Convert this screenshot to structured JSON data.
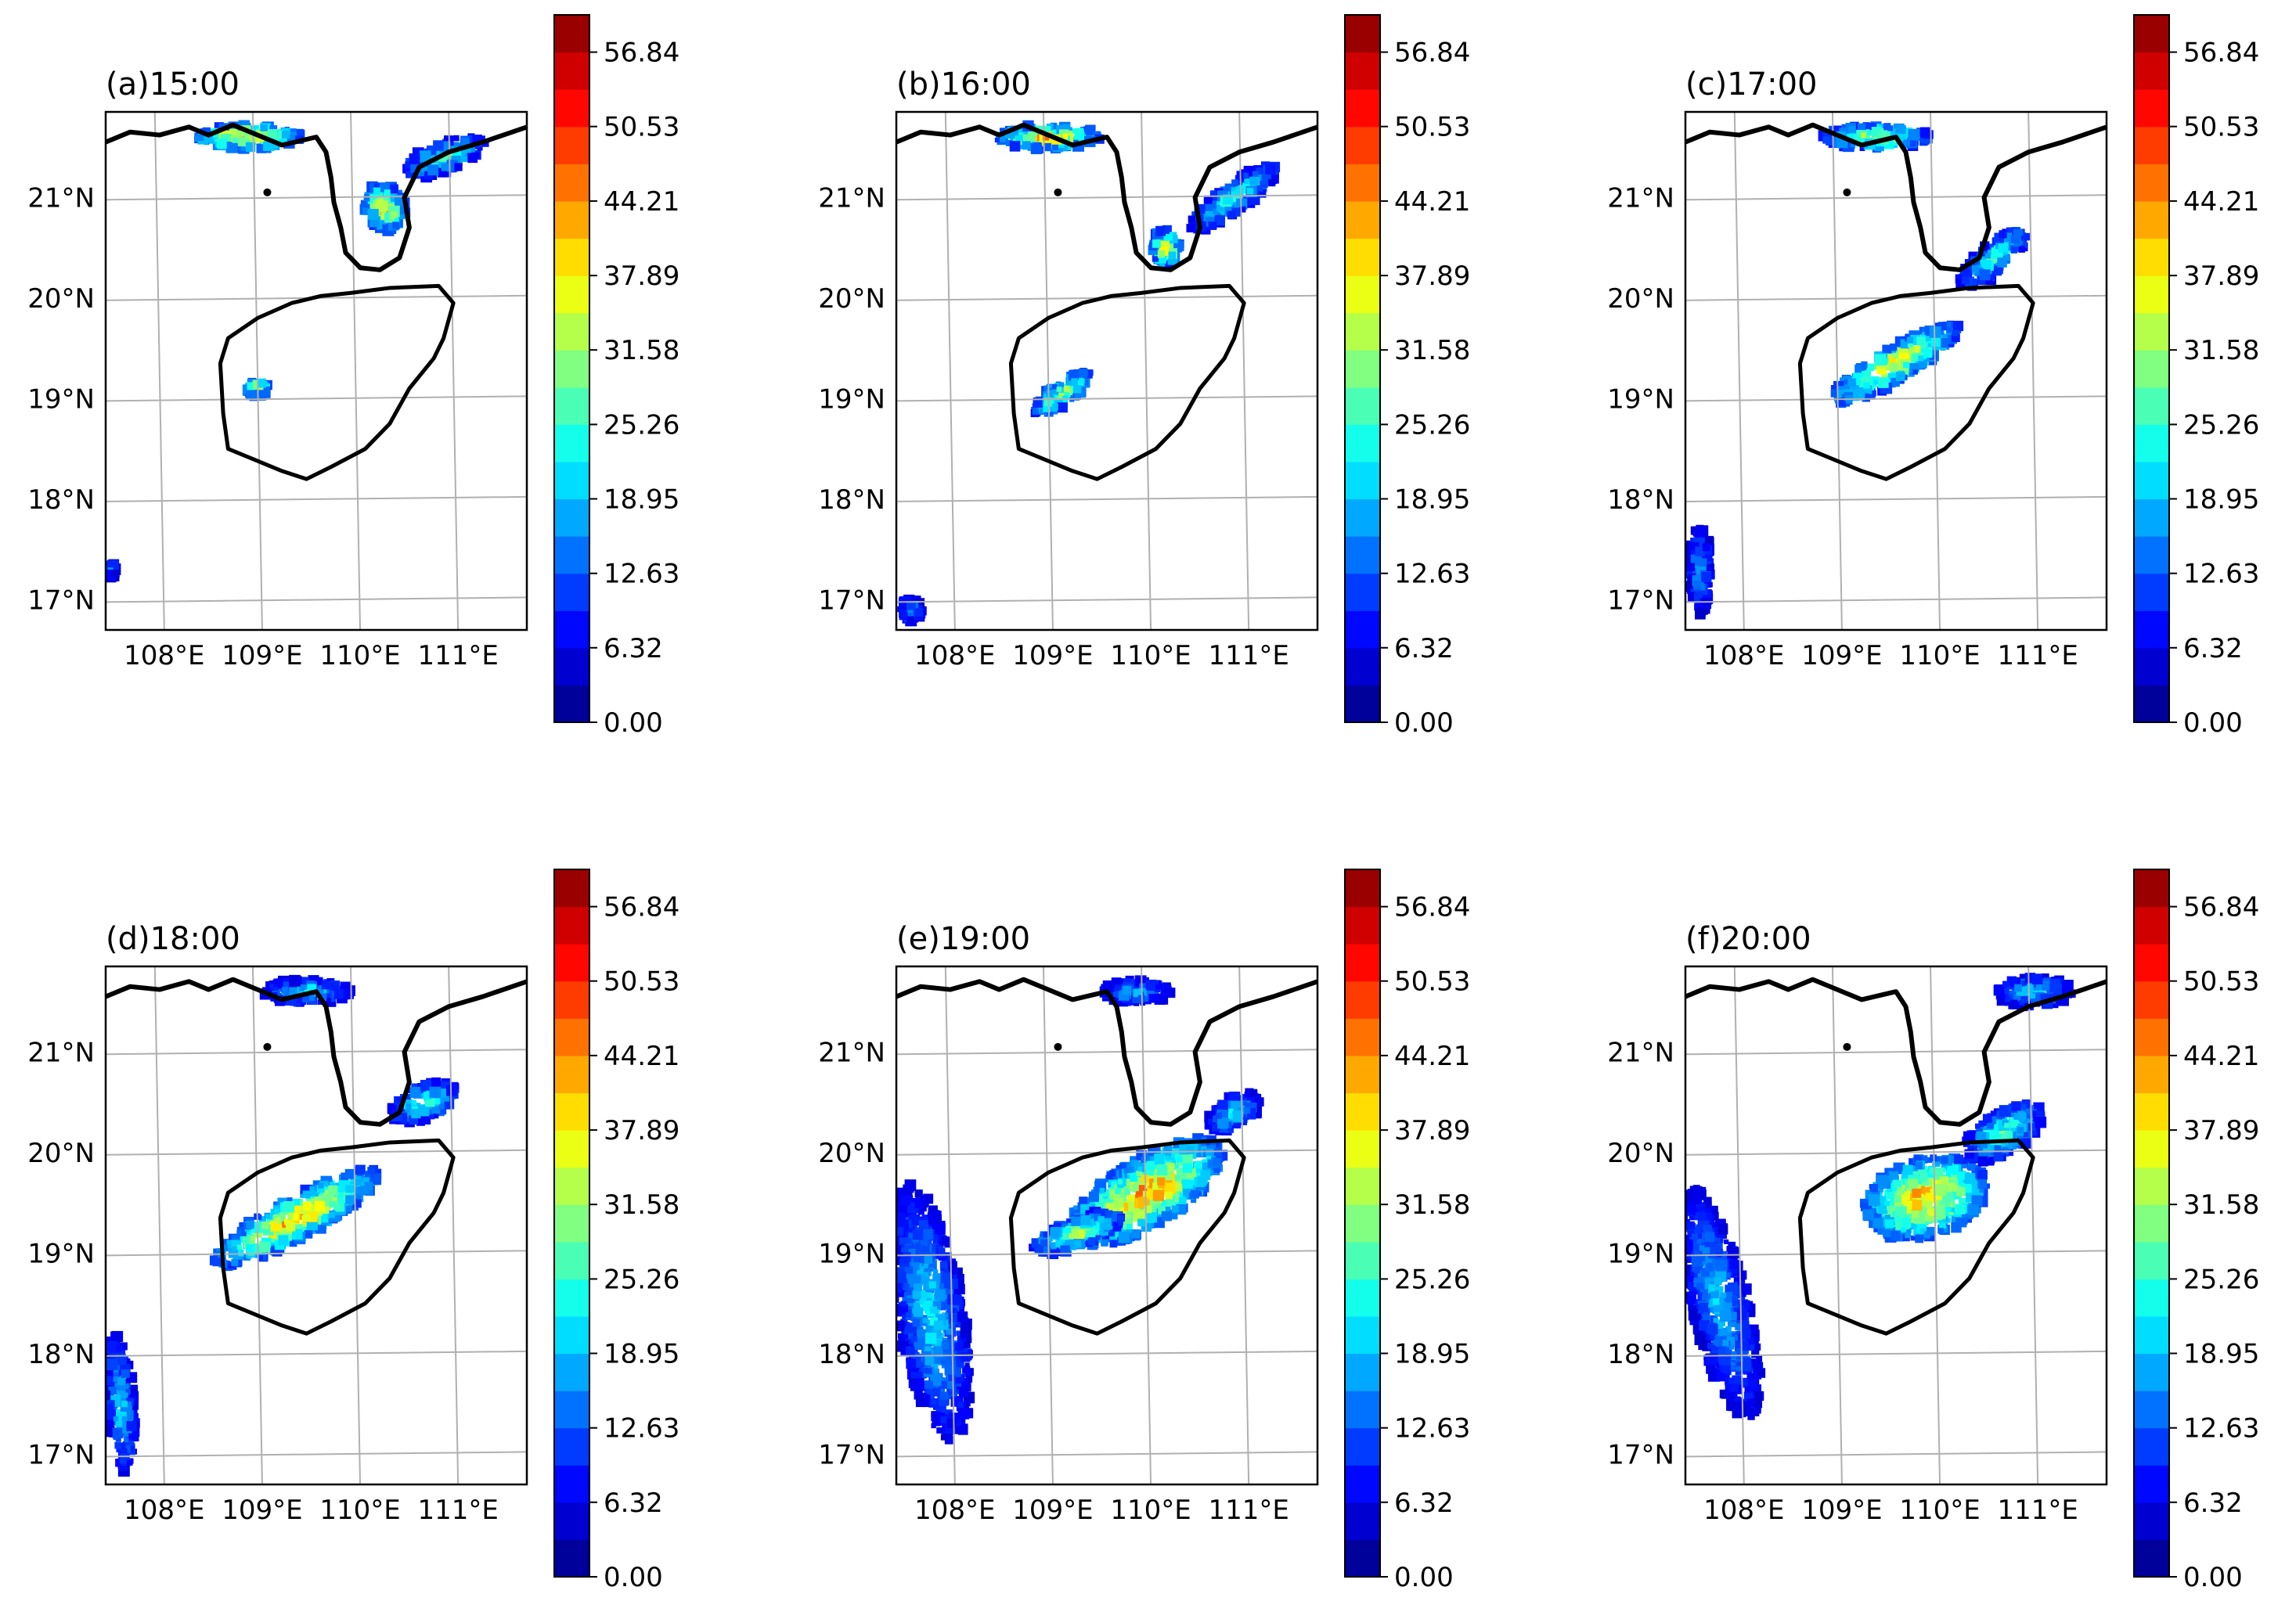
{
  "figure": {
    "panels": [
      {
        "title": "(a)15:00"
      },
      {
        "title": "(b)16:00"
      },
      {
        "title": "(c)17:00"
      },
      {
        "title": "(d)18:00"
      },
      {
        "title": "(e)19:00"
      },
      {
        "title": "(f)20:00"
      }
    ],
    "lat_labels": [
      "21°N",
      "20°N",
      "19°N",
      "18°N",
      "17°N"
    ],
    "lon_labels": [
      "108°E",
      "109°E",
      "110°E",
      "111°E"
    ],
    "colorbar_ticks": [
      "0.00",
      "6.32",
      "12.63",
      "18.95",
      "25.26",
      "31.58",
      "37.89",
      "44.21",
      "50.53",
      "56.84"
    ]
  },
  "chart_data": {
    "type": "heatmap",
    "panels": [
      "(a)15:00",
      "(b)16:00",
      "(c)17:00",
      "(d)18:00",
      "(e)19:00",
      "(f)20:00"
    ],
    "xlabel": "",
    "ylabel": "",
    "xlim": [
      107.45,
      111.75
    ],
    "ylim": [
      16.7,
      21.85
    ],
    "x_ticks": [
      108,
      109,
      110,
      111
    ],
    "y_ticks": [
      17,
      18,
      19,
      20,
      21
    ],
    "grid": true,
    "colorbar": {
      "min": 0.0,
      "max": 60.0,
      "ticks": [
        0.0,
        6.32,
        12.63,
        18.95,
        25.26,
        31.58,
        37.89,
        44.21,
        50.53,
        56.84
      ],
      "colormap": "jet",
      "levels": 19
    }
  }
}
